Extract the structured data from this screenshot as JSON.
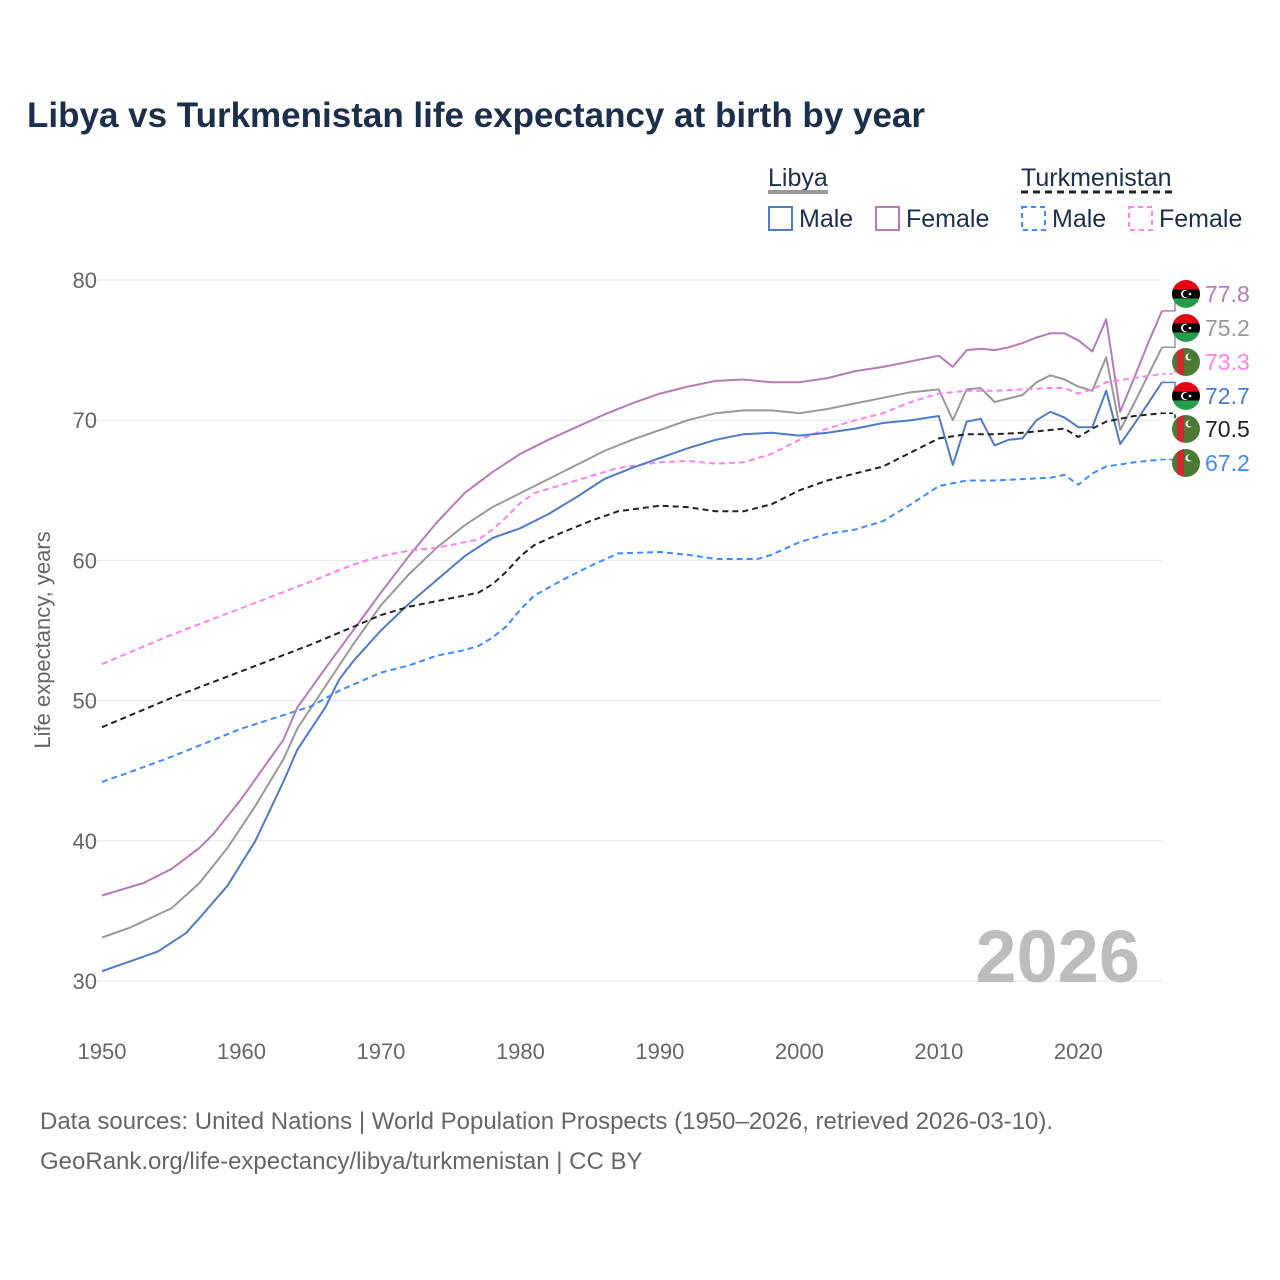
{
  "chart_data": {
    "type": "line",
    "title": "Libya vs Turkmenistan life expectancy at birth by year",
    "xlabel": "",
    "ylabel": "Life expectancy, years",
    "xlim": [
      1950,
      2026
    ],
    "ylim": [
      30,
      80
    ],
    "xticks": [
      1950,
      1960,
      1970,
      1980,
      1990,
      2000,
      2010,
      2020
    ],
    "yticks": [
      30,
      40,
      50,
      60,
      70,
      80
    ],
    "grid": true,
    "year_watermark": "2026",
    "legend": {
      "placement": "top-right",
      "groups": [
        {
          "country": "Libya",
          "items": [
            "Male",
            "Female"
          ]
        },
        {
          "country": "Turkmenistan",
          "items": [
            "Male",
            "Female"
          ]
        }
      ]
    },
    "series": [
      {
        "name": "Libya Female",
        "country": "libya",
        "color": "#b77ab5",
        "dashed": false,
        "end_label": "77.8",
        "points": [
          [
            1950,
            36.1
          ],
          [
            1953,
            37.0
          ],
          [
            1955,
            38.0
          ],
          [
            1957,
            39.5
          ],
          [
            1958,
            40.5
          ],
          [
            1960,
            43
          ],
          [
            1962,
            45.8
          ],
          [
            1963,
            47.2
          ],
          [
            1964,
            49.5
          ],
          [
            1966,
            52.3
          ],
          [
            1968,
            55
          ],
          [
            1970,
            57.7
          ],
          [
            1972,
            60.3
          ],
          [
            1974,
            62.7
          ],
          [
            1976,
            64.8
          ],
          [
            1978,
            66.3
          ],
          [
            1980,
            67.6
          ],
          [
            1982,
            68.6
          ],
          [
            1984,
            69.5
          ],
          [
            1986,
            70.4
          ],
          [
            1988,
            71.2
          ],
          [
            1990,
            71.9
          ],
          [
            1992,
            72.4
          ],
          [
            1994,
            72.8
          ],
          [
            1996,
            72.9
          ],
          [
            1998,
            72.7
          ],
          [
            2000,
            72.7
          ],
          [
            2002,
            73.0
          ],
          [
            2004,
            73.5
          ],
          [
            2006,
            73.8
          ],
          [
            2008,
            74.2
          ],
          [
            2010,
            74.6
          ],
          [
            2011,
            73.8
          ],
          [
            2012,
            75.0
          ],
          [
            2013,
            75.1
          ],
          [
            2014,
            75.0
          ],
          [
            2015,
            75.2
          ],
          [
            2016,
            75.5
          ],
          [
            2017,
            75.9
          ],
          [
            2018,
            76.2
          ],
          [
            2019,
            76.2
          ],
          [
            2020,
            75.7
          ],
          [
            2021,
            74.9
          ],
          [
            2022,
            77.2
          ],
          [
            2023,
            70.6
          ],
          [
            2024,
            73.0
          ],
          [
            2025,
            75.5
          ],
          [
            2026,
            77.8
          ]
        ]
      },
      {
        "name": "Libya",
        "country": "libya",
        "color": "#999999",
        "dashed": false,
        "end_label": "75.2",
        "points": [
          [
            1950,
            33.1
          ],
          [
            1952,
            33.8
          ],
          [
            1955,
            35.2
          ],
          [
            1957,
            37
          ],
          [
            1959,
            39.5
          ],
          [
            1961,
            42.5
          ],
          [
            1963,
            45.8
          ],
          [
            1964,
            48
          ],
          [
            1966,
            51
          ],
          [
            1968,
            54
          ],
          [
            1970,
            56.8
          ],
          [
            1972,
            59
          ],
          [
            1974,
            60.9
          ],
          [
            1976,
            62.5
          ],
          [
            1978,
            63.8
          ],
          [
            1980,
            64.8
          ],
          [
            1982,
            65.8
          ],
          [
            1984,
            66.8
          ],
          [
            1986,
            67.8
          ],
          [
            1988,
            68.6
          ],
          [
            1990,
            69.3
          ],
          [
            1992,
            70.0
          ],
          [
            1994,
            70.5
          ],
          [
            1996,
            70.7
          ],
          [
            1998,
            70.7
          ],
          [
            2000,
            70.5
          ],
          [
            2002,
            70.8
          ],
          [
            2004,
            71.2
          ],
          [
            2006,
            71.6
          ],
          [
            2008,
            72.0
          ],
          [
            2010,
            72.2
          ],
          [
            2011,
            70.0
          ],
          [
            2012,
            72.2
          ],
          [
            2013,
            72.3
          ],
          [
            2014,
            71.3
          ],
          [
            2016,
            71.8
          ],
          [
            2017,
            72.7
          ],
          [
            2018,
            73.2
          ],
          [
            2019,
            72.9
          ],
          [
            2020,
            72.4
          ],
          [
            2021,
            72.1
          ],
          [
            2022,
            74.5
          ],
          [
            2023,
            69.3
          ],
          [
            2024,
            71.2
          ],
          [
            2025,
            73.2
          ],
          [
            2026,
            75.2
          ]
        ]
      },
      {
        "name": "Turkmenistan Female",
        "country": "turkmenistan",
        "color": "#ff80f0",
        "dashed": true,
        "end_label": "73.3",
        "points": [
          [
            1950,
            52.6
          ],
          [
            1955,
            54.7
          ],
          [
            1960,
            56.6
          ],
          [
            1965,
            58.5
          ],
          [
            1968,
            59.7
          ],
          [
            1970,
            60.3
          ],
          [
            1972,
            60.7
          ],
          [
            1974,
            60.9
          ],
          [
            1976,
            61.3
          ],
          [
            1977,
            61.5
          ],
          [
            1978,
            62.2
          ],
          [
            1979,
            63.1
          ],
          [
            1980,
            64.1
          ],
          [
            1981,
            64.8
          ],
          [
            1983,
            65.4
          ],
          [
            1985,
            66.0
          ],
          [
            1987,
            66.6
          ],
          [
            1990,
            67.0
          ],
          [
            1992,
            67.1
          ],
          [
            1994,
            66.9
          ],
          [
            1996,
            67.0
          ],
          [
            1998,
            67.6
          ],
          [
            2000,
            68.6
          ],
          [
            2002,
            69.4
          ],
          [
            2004,
            70.0
          ],
          [
            2006,
            70.5
          ],
          [
            2008,
            71.3
          ],
          [
            2010,
            71.9
          ],
          [
            2012,
            72.1
          ],
          [
            2014,
            72.1
          ],
          [
            2016,
            72.2
          ],
          [
            2018,
            72.3
          ],
          [
            2019,
            72.3
          ],
          [
            2020,
            71.9
          ],
          [
            2021,
            72.2
          ],
          [
            2022,
            72.7
          ],
          [
            2024,
            73.0
          ],
          [
            2026,
            73.3
          ]
        ]
      },
      {
        "name": "Libya Male",
        "country": "libya",
        "color": "#4e7ac7",
        "dashed": false,
        "end_label": "72.7",
        "points": [
          [
            1950,
            30.7
          ],
          [
            1952,
            31.4
          ],
          [
            1954,
            32.1
          ],
          [
            1956,
            33.4
          ],
          [
            1957,
            34.5
          ],
          [
            1959,
            36.8
          ],
          [
            1961,
            40
          ],
          [
            1963,
            44.2
          ],
          [
            1964,
            46.5
          ],
          [
            1966,
            49.5
          ],
          [
            1967,
            51.5
          ],
          [
            1968,
            52.8
          ],
          [
            1970,
            55
          ],
          [
            1972,
            56.9
          ],
          [
            1974,
            58.6
          ],
          [
            1976,
            60.3
          ],
          [
            1978,
            61.6
          ],
          [
            1980,
            62.3
          ],
          [
            1982,
            63.3
          ],
          [
            1984,
            64.5
          ],
          [
            1986,
            65.8
          ],
          [
            1988,
            66.6
          ],
          [
            1990,
            67.3
          ],
          [
            1992,
            68
          ],
          [
            1994,
            68.6
          ],
          [
            1996,
            69.0
          ],
          [
            1998,
            69.1
          ],
          [
            2000,
            68.9
          ],
          [
            2002,
            69.1
          ],
          [
            2004,
            69.4
          ],
          [
            2006,
            69.8
          ],
          [
            2008,
            70.0
          ],
          [
            2010,
            70.3
          ],
          [
            2011,
            66.8
          ],
          [
            2012,
            69.9
          ],
          [
            2013,
            70.1
          ],
          [
            2014,
            68.2
          ],
          [
            2015,
            68.6
          ],
          [
            2016,
            68.7
          ],
          [
            2017,
            70.0
          ],
          [
            2018,
            70.6
          ],
          [
            2019,
            70.2
          ],
          [
            2020,
            69.5
          ],
          [
            2021,
            69.5
          ],
          [
            2022,
            72.1
          ],
          [
            2023,
            68.3
          ],
          [
            2024,
            69.7
          ],
          [
            2025,
            71.2
          ],
          [
            2026,
            72.7
          ]
        ]
      },
      {
        "name": "Turkmenistan",
        "country": "turkmenistan",
        "color": "#222222",
        "dashed": true,
        "end_label": "70.5",
        "points": [
          [
            1950,
            48.1
          ],
          [
            1955,
            50.2
          ],
          [
            1960,
            52.1
          ],
          [
            1965,
            54.0
          ],
          [
            1970,
            56.1
          ],
          [
            1972,
            56.7
          ],
          [
            1974,
            57.1
          ],
          [
            1976,
            57.5
          ],
          [
            1977,
            57.7
          ],
          [
            1978,
            58.3
          ],
          [
            1979,
            59.2
          ],
          [
            1980,
            60.3
          ],
          [
            1981,
            61.1
          ],
          [
            1983,
            62.0
          ],
          [
            1985,
            62.8
          ],
          [
            1987,
            63.5
          ],
          [
            1990,
            63.9
          ],
          [
            1992,
            63.8
          ],
          [
            1994,
            63.5
          ],
          [
            1996,
            63.5
          ],
          [
            1998,
            64.0
          ],
          [
            2000,
            65.0
          ],
          [
            2002,
            65.7
          ],
          [
            2004,
            66.2
          ],
          [
            2006,
            66.7
          ],
          [
            2008,
            67.7
          ],
          [
            2010,
            68.7
          ],
          [
            2012,
            69.0
          ],
          [
            2014,
            69.0
          ],
          [
            2016,
            69.1
          ],
          [
            2018,
            69.3
          ],
          [
            2019,
            69.4
          ],
          [
            2020,
            68.8
          ],
          [
            2021,
            69.4
          ],
          [
            2022,
            69.9
          ],
          [
            2024,
            70.3
          ],
          [
            2026,
            70.5
          ]
        ]
      },
      {
        "name": "Turkmenistan Male",
        "country": "turkmenistan",
        "color": "#3d8bff",
        "dashed": true,
        "end_label": "67.2",
        "points": [
          [
            1950,
            44.2
          ],
          [
            1952,
            44.9
          ],
          [
            1955,
            46.0
          ],
          [
            1960,
            48.0
          ],
          [
            1965,
            49.6
          ],
          [
            1967,
            50.7
          ],
          [
            1970,
            52.0
          ],
          [
            1972,
            52.5
          ],
          [
            1974,
            53.2
          ],
          [
            1976,
            53.6
          ],
          [
            1977,
            53.9
          ],
          [
            1978,
            54.5
          ],
          [
            1979,
            55.3
          ],
          [
            1980,
            56.5
          ],
          [
            1981,
            57.5
          ],
          [
            1983,
            58.6
          ],
          [
            1985,
            59.6
          ],
          [
            1987,
            60.5
          ],
          [
            1990,
            60.6
          ],
          [
            1992,
            60.4
          ],
          [
            1994,
            60.1
          ],
          [
            1997,
            60.1
          ],
          [
            1998,
            60.4
          ],
          [
            2000,
            61.3
          ],
          [
            2002,
            61.9
          ],
          [
            2004,
            62.2
          ],
          [
            2006,
            62.8
          ],
          [
            2008,
            64.0
          ],
          [
            2010,
            65.3
          ],
          [
            2012,
            65.7
          ],
          [
            2014,
            65.7
          ],
          [
            2016,
            65.8
          ],
          [
            2018,
            65.9
          ],
          [
            2019,
            66.1
          ],
          [
            2020,
            65.4
          ],
          [
            2021,
            66.2
          ],
          [
            2022,
            66.7
          ],
          [
            2024,
            67.0
          ],
          [
            2026,
            67.2
          ]
        ]
      }
    ]
  },
  "footer": {
    "line1": "Data sources: United Nations | World Population Prospects (1950–2026, retrieved 2026-03-10).",
    "line2": "GeoRank.org/life-expectancy/libya/turkmenistan | CC BY"
  }
}
